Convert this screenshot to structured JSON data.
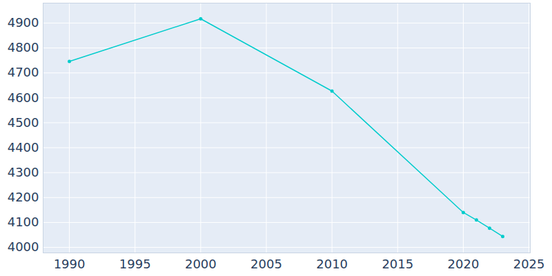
{
  "chart_data": {
    "type": "line",
    "x": [
      1990,
      2000,
      2010,
      2020,
      2021,
      2022,
      2023
    ],
    "values": [
      4746,
      4917,
      4627,
      4140,
      4110,
      4077,
      4044
    ],
    "color": "#00cccc",
    "marker": "circle",
    "xlim": [
      1988,
      2025.1
    ],
    "xticks": [
      1990,
      1995,
      2000,
      2005,
      2010,
      2015,
      2020,
      2025
    ],
    "ylim": [
      3978,
      4980
    ],
    "yticks": [
      4000,
      4100,
      4200,
      4300,
      4400,
      4500,
      4600,
      4700,
      4800,
      4900
    ],
    "grid": true
  }
}
